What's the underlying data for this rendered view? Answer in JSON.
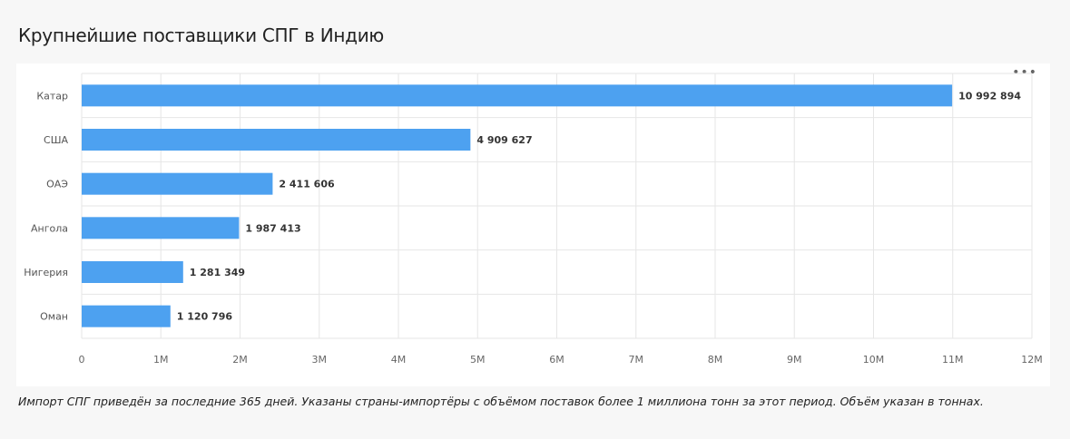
{
  "title": "Крупнейшие поставщики СПГ в Индию",
  "menu_label": "•••",
  "caption": "Импорт СПГ приведён за последние 365 дней. Указаны страны-импортёры с объёмом поставок более 1 миллиона тонн за этот период. Объём указан в тоннах.",
  "colors": {
    "bar": "#4da1f0",
    "grid": "#e6e6e6"
  },
  "chart_data": {
    "type": "bar",
    "orientation": "horizontal",
    "categories": [
      "Катар",
      "США",
      "ОАЭ",
      "Ангола",
      "Нигерия",
      "Оман"
    ],
    "values": [
      10992894,
      4909627,
      2411606,
      1987413,
      1281349,
      1120796
    ],
    "data_labels": [
      "10 992 894",
      "4 909 627",
      "2 411 606",
      "1 987 413",
      "1 281 349",
      "1 120 796"
    ],
    "xlim": [
      0,
      12000000
    ],
    "xticks": [
      0,
      1000000,
      2000000,
      3000000,
      4000000,
      5000000,
      6000000,
      7000000,
      8000000,
      9000000,
      10000000,
      11000000,
      12000000
    ],
    "xtick_labels": [
      "0",
      "1M",
      "2M",
      "3M",
      "4M",
      "5M",
      "6M",
      "7M",
      "8M",
      "9M",
      "10M",
      "11M",
      "12M"
    ],
    "grid": true,
    "legend": "none"
  }
}
